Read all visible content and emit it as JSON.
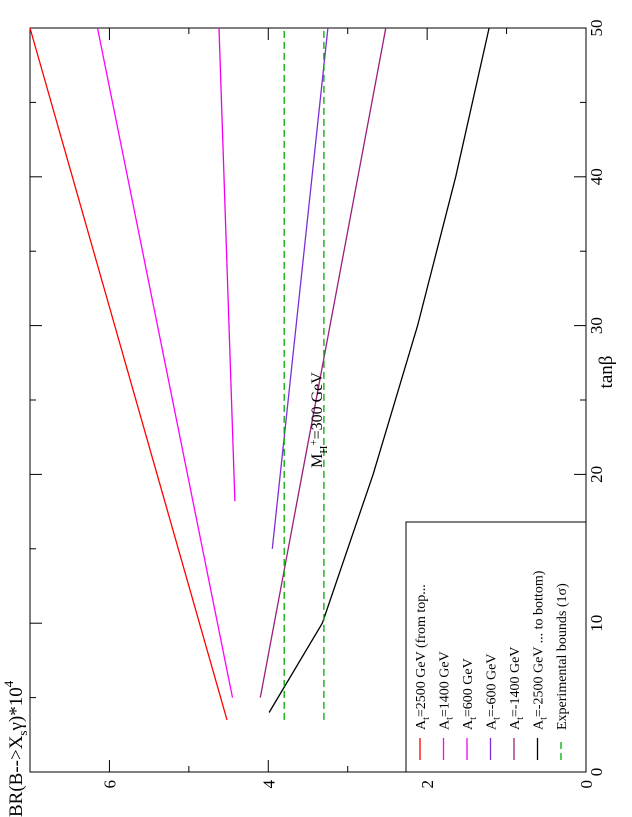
{
  "chart_data": {
    "type": "line",
    "title": "M_H+=300 GeV",
    "title_main": "M",
    "title_sub": "H",
    "title_sup": "+",
    "title_rest": "=300 GeV",
    "xlabel": "tanβ",
    "ylabel": "BR(B-->X_s γ)*10^4",
    "ylabel_parts": {
      "pre": "BR(B-->X",
      "sub": "s",
      "mid": "γ)*10",
      "sup": "4"
    },
    "xlim": [
      0,
      50
    ],
    "ylim": [
      0,
      7
    ],
    "x_ticks": [
      0,
      10,
      20,
      30,
      40,
      50
    ],
    "y_ticks": [
      0,
      2,
      4,
      6
    ],
    "legend_position": "bottom-right",
    "series": [
      {
        "name": "A_t=2500 GeV (from top...",
        "label_main": "A",
        "label_sub": "t",
        "label_rest": "=2500 GeV (from top...",
        "color": "#ff0000",
        "dash": false,
        "x": [
          3.5,
          50
        ],
        "y": [
          4.52,
          7.0
        ]
      },
      {
        "name": "A_t=1400 GeV",
        "label_main": "A",
        "label_sub": "t",
        "label_rest": "=1400 GeV",
        "color": "#ff00ff",
        "dash": false,
        "x": [
          5,
          50
        ],
        "y": [
          4.45,
          6.15
        ]
      },
      {
        "name": "A_t=600 GeV",
        "label_main": "A",
        "label_sub": "t",
        "label_rest": "=600 GeV",
        "color": "#ee00ee",
        "dash": false,
        "x": [
          18.2,
          50
        ],
        "y": [
          4.42,
          4.62
        ]
      },
      {
        "name": "A_t=-600 GeV",
        "label_main": "A",
        "label_sub": "t",
        "label_rest": "=-600 GeV",
        "color": "#7b2fd8",
        "dash": false,
        "x": [
          15,
          50
        ],
        "y": [
          3.95,
          3.25
        ]
      },
      {
        "name": "A_t=-1400 GeV",
        "label_main": "A",
        "label_sub": "t",
        "label_rest": "=-1400 GeV",
        "color": "#9a1f7a",
        "dash": false,
        "x": [
          5,
          50
        ],
        "y": [
          4.1,
          2.52
        ]
      },
      {
        "name": "A_t=-2500 GeV ... to bottom)",
        "label_main": "A",
        "label_sub": "t",
        "label_rest": "=-2500 GeV ... to bottom)",
        "color": "#000000",
        "dash": false,
        "x": [
          4,
          10,
          20,
          30,
          40,
          50
        ],
        "y": [
          3.99,
          3.32,
          2.68,
          2.12,
          1.64,
          1.22
        ]
      },
      {
        "name": "Experimental bounds (1σ)",
        "label_main": "Experimental bounds (1σ)",
        "label_sub": "",
        "label_rest": "",
        "color": "#00aa00",
        "dash": true,
        "x": [
          3.5,
          50
        ],
        "y": [
          3.8,
          3.8
        ],
        "x2": [
          3.5,
          50
        ],
        "y2": [
          3.3,
          3.3
        ]
      }
    ]
  }
}
